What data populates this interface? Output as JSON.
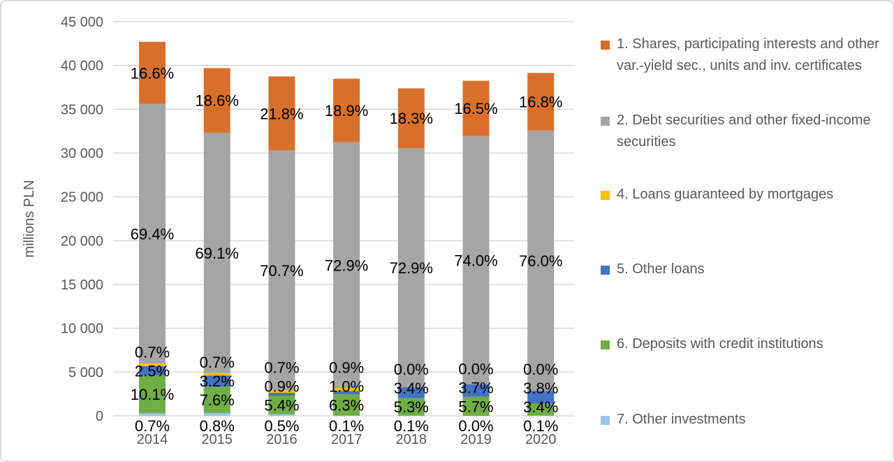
{
  "chart_data": {
    "type": "bar",
    "stacked": true,
    "categories": [
      "2014",
      "2015",
      "2016",
      "2017",
      "2018",
      "2019",
      "2020"
    ],
    "ylabel": "millions PLN",
    "ylim": [
      0,
      45000
    ],
    "yticks": [
      0,
      5000,
      10000,
      15000,
      20000,
      25000,
      30000,
      35000,
      40000,
      45000
    ],
    "ytick_labels": [
      "0",
      "5 000",
      "10 000",
      "15 000",
      "20 000",
      "25 000",
      "30 000",
      "35 000",
      "40 000",
      "45 000"
    ],
    "grid": true,
    "legend_position": "right",
    "series": [
      {
        "name": "7. Other investments",
        "color": "#9DC3E6",
        "values": [
          300,
          320,
          190,
          40,
          40,
          0,
          40
        ],
        "labels": [
          "0.7%",
          "0.8%",
          "0.5%",
          "0.1%",
          "0.1%",
          "0.0%",
          "0.1%"
        ]
      },
      {
        "name": "6. Deposits with credit institutions",
        "color": "#70AD47",
        "values": [
          4310,
          3020,
          2090,
          2420,
          1980,
          2180,
          1330
        ],
        "labels": [
          "10.1%",
          "7.6%",
          "5.4%",
          "6.3%",
          "5.3%",
          "5.7%",
          "3.4%"
        ]
      },
      {
        "name": "5. Other loans",
        "color": "#4472C4",
        "values": [
          1070,
          1270,
          350,
          380,
          1270,
          1420,
          1490
        ],
        "labels": [
          "2.5%",
          "3.2%",
          "0.9%",
          "1.0%",
          "3.4%",
          "3.7%",
          "3.8%"
        ]
      },
      {
        "name": "4. Loans guaranteed by mortgages",
        "color": "#FFC000",
        "values": [
          300,
          280,
          270,
          350,
          0,
          0,
          0
        ],
        "labels": [
          "0.7%",
          "0.7%",
          "0.7%",
          "0.9%",
          "0.0%",
          "0.0%",
          "0.0%"
        ]
      },
      {
        "name": "2. Debt securities and other fixed-income securities",
        "color": "#A5A5A5",
        "values": [
          29630,
          27430,
          27400,
          28030,
          27260,
          28340,
          29720
        ],
        "labels": [
          "69.4%",
          "69.1%",
          "70.7%",
          "72.9%",
          "72.9%",
          "74.0%",
          "76.0%"
        ]
      },
      {
        "name": "1. Shares, participating interests and other var.-yield sec., units and inv. certificates",
        "color": "#D8702C",
        "values": [
          7090,
          7380,
          8450,
          7270,
          6840,
          6320,
          6570
        ],
        "labels": [
          "16.6%",
          "18.6%",
          "21.8%",
          "18.9%",
          "18.3%",
          "16.5%",
          "16.8%"
        ]
      }
    ]
  }
}
